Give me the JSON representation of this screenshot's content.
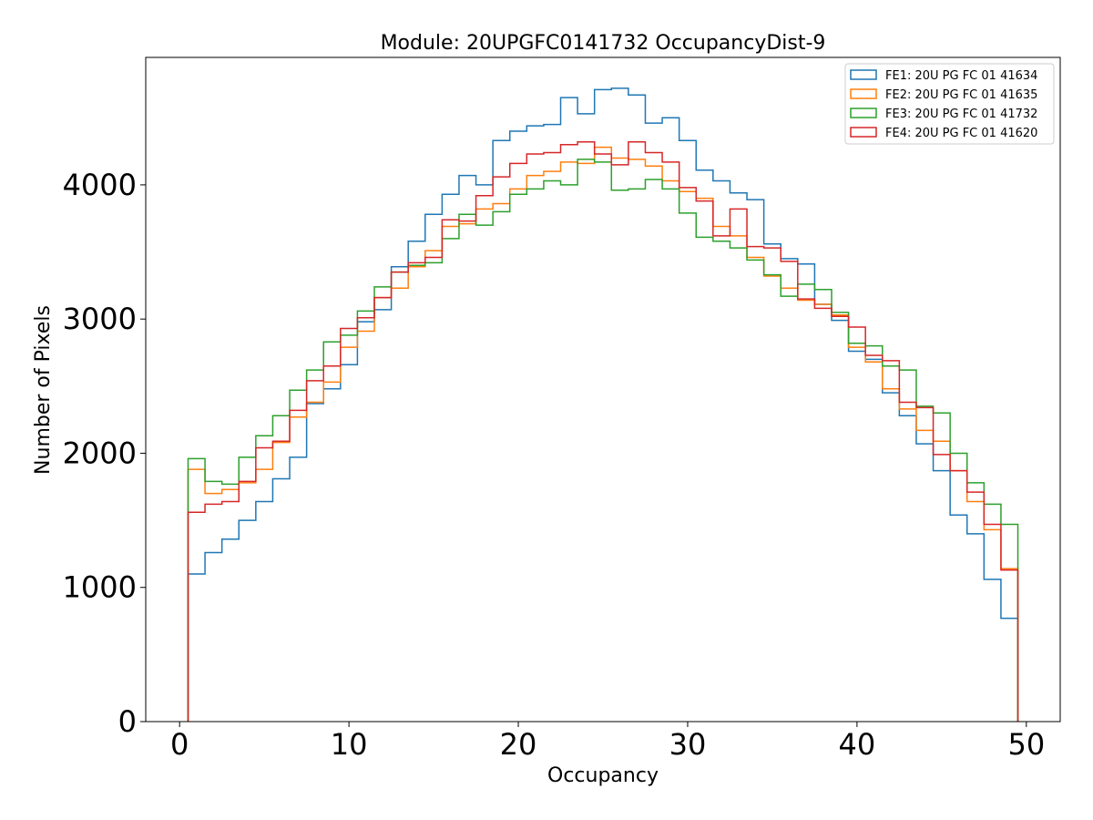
{
  "chart_data": {
    "type": "histogram",
    "title": "Module: 20UPGFC0141732 OccupancyDist-9",
    "xlabel": "Occupancy",
    "ylabel": "Number of Pixels",
    "xlim": [
      -2,
      52
    ],
    "ylim": [
      0,
      4950
    ],
    "x_ticks": [
      0,
      10,
      20,
      30,
      40,
      50
    ],
    "y_ticks": [
      0,
      1000,
      2000,
      3000,
      4000
    ],
    "bin_edges_start": 0.5,
    "bin_width": 1,
    "legend_position": "top-right",
    "grid": false,
    "series": [
      {
        "name": "FE1: 20U PG FC 01 41634",
        "color": "#1f77b4",
        "values": [
          1100,
          1260,
          1360,
          1500,
          1640,
          1810,
          1970,
          2370,
          2480,
          2660,
          2980,
          3070,
          3390,
          3580,
          3780,
          3930,
          4070,
          4000,
          4330,
          4400,
          4440,
          4450,
          4650,
          4530,
          4710,
          4720,
          4670,
          4460,
          4500,
          4330,
          4110,
          4030,
          3940,
          3890,
          3560,
          3450,
          3410,
          3110,
          2990,
          2760,
          2700,
          2450,
          2280,
          2070,
          1870,
          1540,
          1400,
          1060,
          770
        ]
      },
      {
        "name": "FE2: 20U PG FC 01 41635",
        "color": "#ff7f0e",
        "values": [
          1880,
          1700,
          1730,
          1780,
          1880,
          2080,
          2270,
          2380,
          2530,
          2790,
          2910,
          3160,
          3230,
          3390,
          3510,
          3690,
          3710,
          3820,
          3860,
          3970,
          4070,
          4100,
          4170,
          4160,
          4280,
          4200,
          4190,
          4140,
          4030,
          3950,
          3900,
          3690,
          3620,
          3460,
          3320,
          3230,
          3140,
          3110,
          3030,
          2790,
          2680,
          2480,
          2330,
          2170,
          2090,
          1870,
          1640,
          1430,
          1140
        ]
      },
      {
        "name": "FE3: 20U PG FC 01 41732",
        "color": "#2ca02c",
        "values": [
          1960,
          1790,
          1770,
          1970,
          2130,
          2280,
          2470,
          2620,
          2830,
          2880,
          3060,
          3240,
          3350,
          3400,
          3420,
          3600,
          3780,
          3700,
          3800,
          3930,
          3970,
          4030,
          4000,
          4190,
          4170,
          3960,
          3970,
          4040,
          3970,
          3790,
          3610,
          3580,
          3530,
          3440,
          3330,
          3170,
          3260,
          3220,
          3050,
          2820,
          2800,
          2650,
          2620,
          2350,
          2300,
          2000,
          1780,
          1620,
          1470
        ]
      },
      {
        "name": "FE4: 20U PG FC 01 41620",
        "color": "#d62728",
        "values": [
          1560,
          1620,
          1640,
          1790,
          2040,
          2090,
          2320,
          2540,
          2650,
          2930,
          3010,
          3160,
          3350,
          3420,
          3460,
          3740,
          3730,
          3920,
          4060,
          4160,
          4230,
          4240,
          4300,
          4320,
          4230,
          4150,
          4320,
          4240,
          4170,
          3980,
          3880,
          3620,
          3820,
          3540,
          3530,
          3430,
          3150,
          3080,
          3020,
          2940,
          2730,
          2690,
          2380,
          2340,
          1990,
          1870,
          1710,
          1470,
          1130
        ]
      }
    ]
  }
}
